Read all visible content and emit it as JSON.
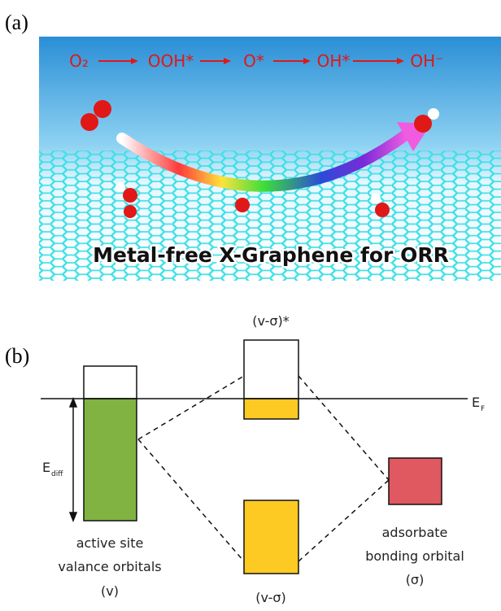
{
  "panel_a": {
    "label": "(a)",
    "reaction": [
      "O₂",
      "OOH*",
      "O*",
      "OH*",
      "OH⁻"
    ],
    "caption": "Metal-free X-Graphene for ORR"
  },
  "panel_b": {
    "label": "(b)",
    "fermi_label": "E",
    "fermi_sub": "F",
    "ediff_label": "E",
    "ediff_sub": "diff",
    "antibonding_label": "(v-σ)*",
    "bonding_label": "(v-σ)",
    "active_site": [
      "active site",
      "valance orbitals",
      "(v)"
    ],
    "adsorbate": [
      "adsorbate",
      "bonding orbital",
      "(σ)"
    ]
  }
}
